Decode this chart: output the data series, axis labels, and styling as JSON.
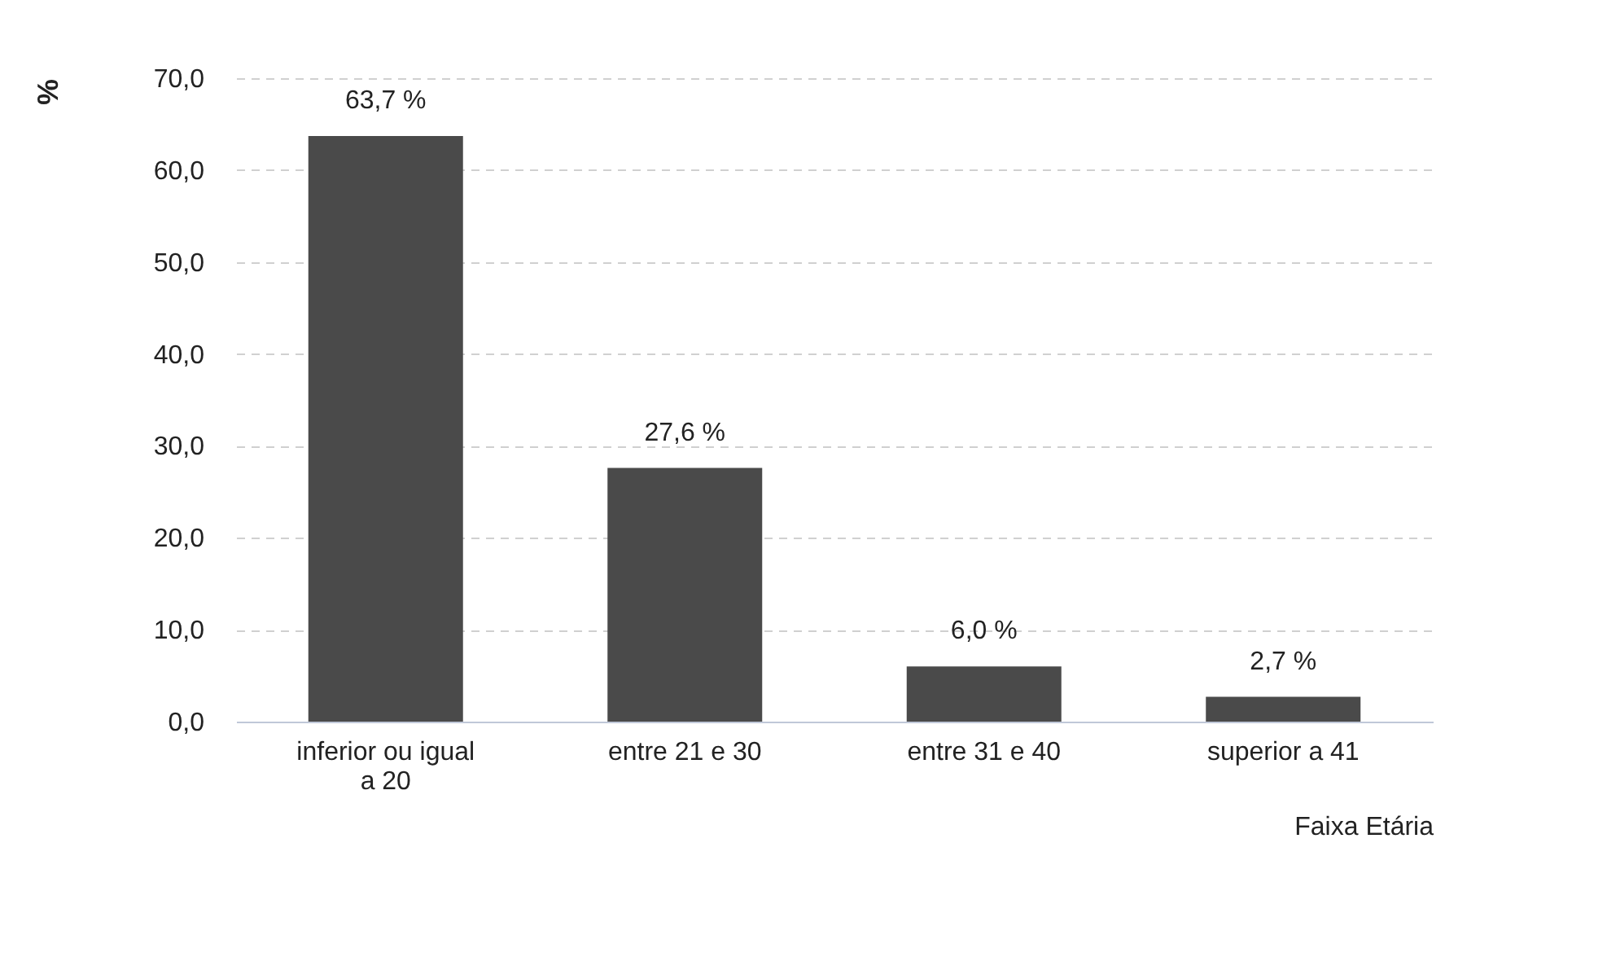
{
  "chart_data": {
    "type": "bar",
    "xlabel": "Faixa Etária",
    "ylabel": "%",
    "categories": [
      "inferior ou igual a 20",
      "entre 21 e 30",
      "entre 31 e 40",
      "superior a 41"
    ],
    "values": [
      63.7,
      27.6,
      6.0,
      2.7
    ],
    "value_labels": [
      "63,7 %",
      "27,6 %",
      "6,0 %",
      "2,7 %"
    ],
    "color": "#4a4a4a",
    "ylim": [
      0,
      70
    ],
    "yticks": [
      {
        "value": 0,
        "label": "0,0"
      },
      {
        "value": 10,
        "label": "10,0"
      },
      {
        "value": 20,
        "label": "20,0"
      },
      {
        "value": 30,
        "label": "30,0"
      },
      {
        "value": 40,
        "label": "40,0"
      },
      {
        "value": 50,
        "label": "50,0"
      },
      {
        "value": 60,
        "label": "60,0"
      },
      {
        "value": 70,
        "label": "70,0"
      }
    ],
    "grid": "y"
  }
}
